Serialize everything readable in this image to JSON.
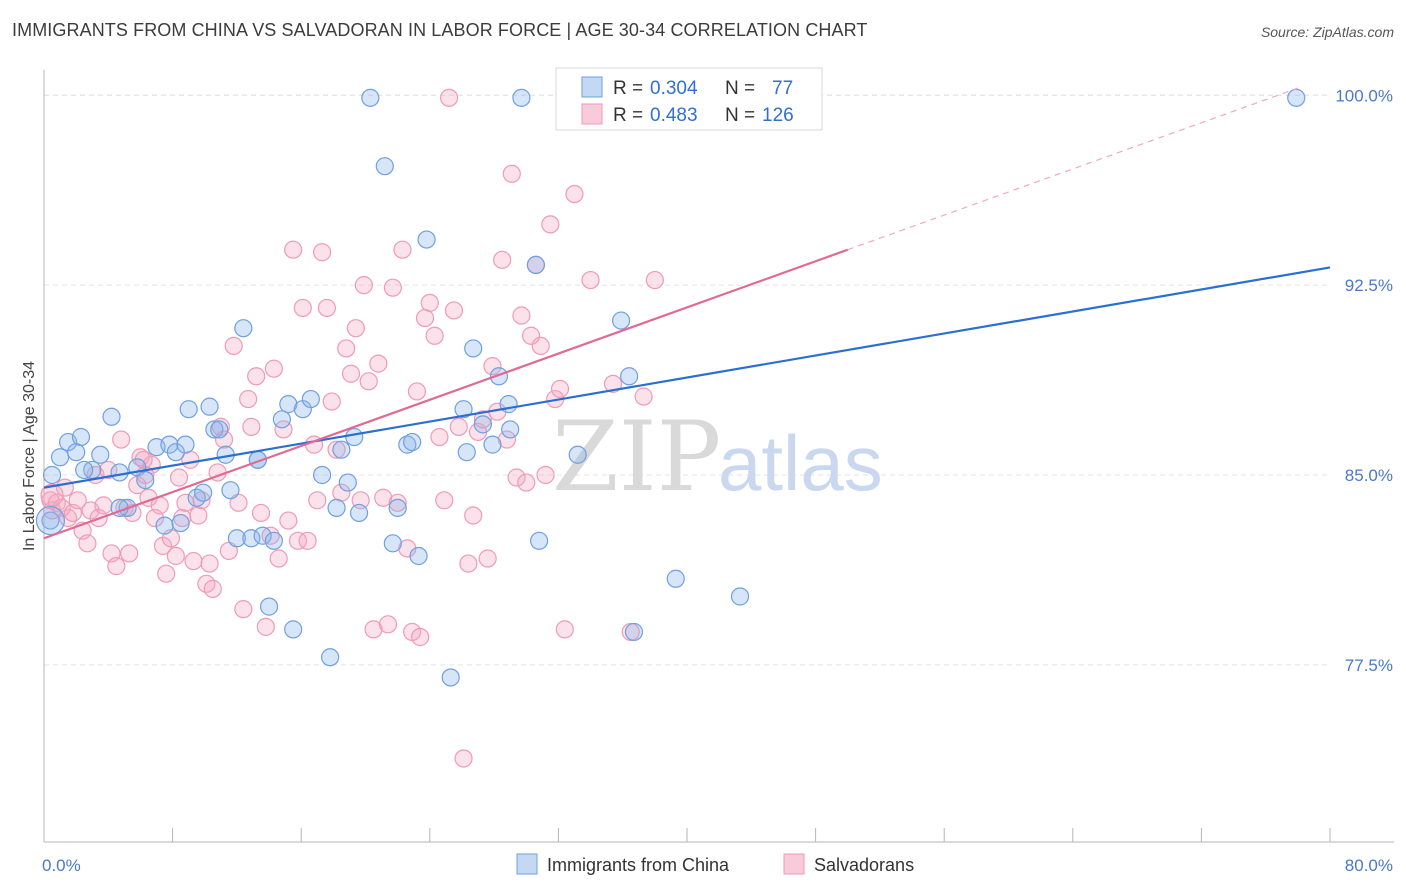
{
  "title": "IMMIGRANTS FROM CHINA VS SALVADORAN IN LABOR FORCE | AGE 30-34 CORRELATION CHART",
  "source": "Source: ZipAtlas.com",
  "watermark": {
    "zip": "ZIP",
    "atlas": "atlas"
  },
  "colors": {
    "blue": "#6fa0e0",
    "blue_line": "#2a6fd1",
    "pink": "#f09ab6",
    "pink_line": "#e06a93"
  },
  "legend": {
    "r_label": "R =",
    "n_label": "N =",
    "blue": {
      "r": "0.304",
      "n": "77"
    },
    "pink": {
      "r": "0.483",
      "n": "126"
    }
  },
  "bottom_legend": {
    "blue": "Immigrants from China",
    "pink": "Salvadorans"
  },
  "chart_data": {
    "type": "scatter",
    "title": "IMMIGRANTS FROM CHINA VS SALVADORAN IN LABOR FORCE | AGE 30-34 CORRELATION CHART",
    "xlabel": "",
    "ylabel": "In Labor Force | Age 30-34",
    "xlim": [
      0,
      80
    ],
    "ylim": [
      70.5,
      101
    ],
    "x_tick_labels": [
      "0.0%",
      "80.0%"
    ],
    "y_ticks": [
      77.5,
      85.0,
      92.5,
      100.0
    ],
    "y_tick_labels": [
      "77.5%",
      "85.0%",
      "92.5%",
      "100.0%"
    ],
    "grid": true,
    "legend_position": "top-center",
    "series": [
      {
        "name": "Immigrants from China",
        "color": "#6fa0e0",
        "trend": {
          "x": [
            0,
            80
          ],
          "y": [
            84.5,
            93.2
          ]
        },
        "points": [
          [
            0.5,
            85.0
          ],
          [
            0.4,
            83.2
          ],
          [
            1.0,
            85.7
          ],
          [
            1.5,
            86.3
          ],
          [
            2.3,
            86.5
          ],
          [
            2.0,
            85.9
          ],
          [
            3.0,
            85.2
          ],
          [
            3.5,
            85.8
          ],
          [
            4.2,
            87.3
          ],
          [
            4.7,
            85.1
          ],
          [
            5.2,
            83.7
          ],
          [
            5.8,
            85.3
          ],
          [
            6.3,
            84.8
          ],
          [
            7.0,
            86.1
          ],
          [
            7.5,
            83.0
          ],
          [
            7.8,
            86.2
          ],
          [
            8.2,
            85.9
          ],
          [
            8.5,
            83.1
          ],
          [
            8.8,
            86.2
          ],
          [
            9.0,
            87.6
          ],
          [
            9.5,
            84.1
          ],
          [
            9.9,
            84.3
          ],
          [
            10.3,
            87.7
          ],
          [
            10.6,
            86.8
          ],
          [
            10.9,
            86.8
          ],
          [
            11.3,
            85.8
          ],
          [
            11.6,
            84.4
          ],
          [
            12.0,
            82.5
          ],
          [
            12.4,
            90.8
          ],
          [
            12.9,
            82.5
          ],
          [
            13.3,
            85.6
          ],
          [
            13.6,
            82.6
          ],
          [
            14.0,
            79.8
          ],
          [
            14.3,
            82.4
          ],
          [
            14.8,
            87.2
          ],
          [
            15.2,
            87.8
          ],
          [
            15.5,
            78.9
          ],
          [
            16.1,
            87.6
          ],
          [
            16.6,
            88.0
          ],
          [
            17.3,
            85.0
          ],
          [
            17.8,
            77.8
          ],
          [
            18.2,
            83.7
          ],
          [
            18.5,
            86.0
          ],
          [
            18.9,
            84.7
          ],
          [
            19.3,
            86.5
          ],
          [
            19.6,
            83.5
          ],
          [
            20.3,
            99.9
          ],
          [
            21.2,
            97.2
          ],
          [
            21.7,
            82.3
          ],
          [
            22.0,
            83.7
          ],
          [
            22.6,
            86.2
          ],
          [
            22.9,
            86.3
          ],
          [
            23.3,
            81.8
          ],
          [
            23.8,
            94.3
          ],
          [
            25.3,
            77.0
          ],
          [
            26.1,
            87.6
          ],
          [
            26.3,
            85.9
          ],
          [
            26.7,
            90.0
          ],
          [
            27.3,
            87.0
          ],
          [
            27.9,
            86.2
          ],
          [
            28.3,
            88.9
          ],
          [
            28.9,
            87.8
          ],
          [
            29.0,
            86.8
          ],
          [
            29.7,
            99.9
          ],
          [
            30.6,
            93.3
          ],
          [
            30.8,
            82.4
          ],
          [
            32.4,
            99.9
          ],
          [
            33.2,
            85.8
          ],
          [
            35.9,
            91.1
          ],
          [
            36.4,
            88.9
          ],
          [
            36.7,
            78.8
          ],
          [
            39.3,
            80.9
          ],
          [
            43.3,
            80.2
          ],
          [
            77.9,
            99.9
          ],
          [
            4.7,
            83.7
          ],
          [
            13.3,
            85.6
          ],
          [
            2.5,
            85.2
          ]
        ]
      },
      {
        "name": "Salvadorans",
        "color": "#f09ab6",
        "trend": {
          "x": [
            0,
            50
          ],
          "y": [
            82.5,
            93.9
          ]
        },
        "points": [
          [
            0.4,
            84.0
          ],
          [
            0.5,
            83.6
          ],
          [
            0.8,
            83.9
          ],
          [
            1.1,
            83.7
          ],
          [
            1.3,
            84.5
          ],
          [
            1.5,
            83.3
          ],
          [
            1.8,
            83.5
          ],
          [
            2.1,
            84.0
          ],
          [
            2.4,
            82.8
          ],
          [
            2.7,
            82.3
          ],
          [
            2.9,
            83.6
          ],
          [
            3.2,
            85.0
          ],
          [
            3.4,
            83.3
          ],
          [
            3.7,
            83.8
          ],
          [
            4.0,
            85.2
          ],
          [
            4.2,
            81.9
          ],
          [
            4.5,
            81.4
          ],
          [
            4.8,
            86.4
          ],
          [
            5.0,
            83.7
          ],
          [
            5.3,
            81.9
          ],
          [
            5.5,
            83.5
          ],
          [
            5.8,
            84.6
          ],
          [
            6.0,
            85.7
          ],
          [
            6.3,
            85.0
          ],
          [
            6.5,
            84.1
          ],
          [
            6.7,
            85.4
          ],
          [
            6.9,
            83.3
          ],
          [
            7.2,
            83.8
          ],
          [
            7.4,
            82.2
          ],
          [
            7.6,
            81.1
          ],
          [
            7.9,
            82.5
          ],
          [
            8.2,
            81.8
          ],
          [
            8.4,
            84.9
          ],
          [
            8.6,
            83.3
          ],
          [
            8.8,
            83.9
          ],
          [
            9.1,
            85.6
          ],
          [
            9.3,
            81.6
          ],
          [
            9.6,
            83.4
          ],
          [
            9.8,
            84.0
          ],
          [
            10.1,
            80.7
          ],
          [
            10.3,
            81.5
          ],
          [
            10.5,
            80.5
          ],
          [
            10.8,
            85.1
          ],
          [
            11.0,
            86.9
          ],
          [
            11.2,
            86.4
          ],
          [
            11.5,
            82.0
          ],
          [
            11.8,
            90.1
          ],
          [
            12.1,
            83.9
          ],
          [
            12.4,
            79.7
          ],
          [
            12.7,
            88.0
          ],
          [
            12.9,
            86.9
          ],
          [
            13.2,
            88.9
          ],
          [
            13.5,
            83.5
          ],
          [
            13.8,
            79.0
          ],
          [
            14.1,
            82.6
          ],
          [
            14.3,
            89.2
          ],
          [
            14.6,
            81.7
          ],
          [
            14.9,
            86.8
          ],
          [
            15.2,
            83.2
          ],
          [
            15.5,
            93.9
          ],
          [
            15.8,
            82.4
          ],
          [
            16.1,
            91.6
          ],
          [
            16.4,
            82.4
          ],
          [
            16.8,
            86.2
          ],
          [
            17.0,
            84.0
          ],
          [
            17.3,
            93.8
          ],
          [
            17.6,
            91.6
          ],
          [
            17.9,
            87.9
          ],
          [
            18.2,
            86.0
          ],
          [
            18.5,
            84.3
          ],
          [
            18.8,
            90.0
          ],
          [
            19.1,
            89.0
          ],
          [
            19.4,
            90.8
          ],
          [
            19.7,
            84.0
          ],
          [
            19.9,
            92.5
          ],
          [
            20.2,
            88.7
          ],
          [
            20.5,
            78.9
          ],
          [
            20.8,
            89.4
          ],
          [
            21.1,
            84.1
          ],
          [
            21.4,
            79.1
          ],
          [
            21.7,
            92.4
          ],
          [
            22.0,
            83.9
          ],
          [
            22.3,
            93.9
          ],
          [
            22.6,
            82.1
          ],
          [
            22.9,
            78.8
          ],
          [
            23.2,
            88.3
          ],
          [
            23.4,
            78.6
          ],
          [
            23.7,
            91.2
          ],
          [
            24.0,
            91.8
          ],
          [
            24.3,
            90.5
          ],
          [
            24.6,
            86.5
          ],
          [
            24.9,
            84.0
          ],
          [
            25.2,
            99.9
          ],
          [
            25.5,
            91.5
          ],
          [
            25.8,
            86.9
          ],
          [
            26.1,
            73.8
          ],
          [
            26.4,
            81.5
          ],
          [
            26.7,
            83.4
          ],
          [
            27.0,
            86.7
          ],
          [
            27.3,
            87.2
          ],
          [
            27.6,
            81.7
          ],
          [
            27.9,
            89.3
          ],
          [
            28.2,
            87.5
          ],
          [
            28.5,
            93.5
          ],
          [
            28.8,
            86.4
          ],
          [
            29.1,
            96.9
          ],
          [
            29.4,
            84.9
          ],
          [
            29.7,
            91.3
          ],
          [
            30.0,
            84.7
          ],
          [
            30.3,
            90.5
          ],
          [
            30.6,
            93.3
          ],
          [
            30.9,
            90.1
          ],
          [
            31.2,
            85.0
          ],
          [
            31.5,
            94.9
          ],
          [
            31.8,
            88.0
          ],
          [
            32.1,
            88.4
          ],
          [
            32.4,
            78.9
          ],
          [
            33.0,
            96.1
          ],
          [
            34.0,
            92.7
          ],
          [
            35.4,
            88.6
          ],
          [
            36.5,
            78.8
          ],
          [
            37.3,
            88.1
          ],
          [
            38.0,
            92.7
          ],
          [
            43.5,
            99.9
          ],
          [
            44.5,
            99.8
          ],
          [
            6.2,
            85.6
          ]
        ]
      }
    ]
  }
}
